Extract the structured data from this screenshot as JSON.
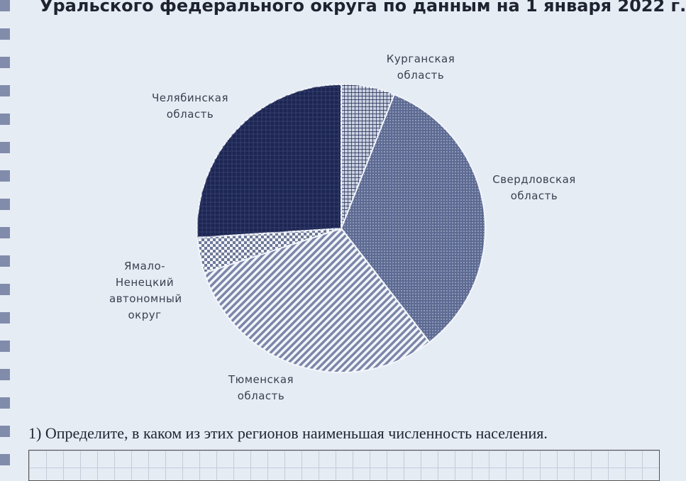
{
  "chart_data": {
    "type": "pie",
    "title": "Уральского федерального округа по данным на 1 января 2022 г.",
    "categories": [
      "Курганская область",
      "Свердловская область",
      "Тюменская область",
      "Ямало-Ненецкий автономный округ",
      "Челябинская область"
    ],
    "values": [
      6,
      33.5,
      30.5,
      4,
      26
    ],
    "colors": [
      "#c9d0df",
      "#5d6a93",
      "#7c86a8",
      "#6e7898",
      "#1d2652"
    ]
  },
  "question": {
    "text": "1) Определите, в каком из этих регионов наименьшая численность населения."
  }
}
